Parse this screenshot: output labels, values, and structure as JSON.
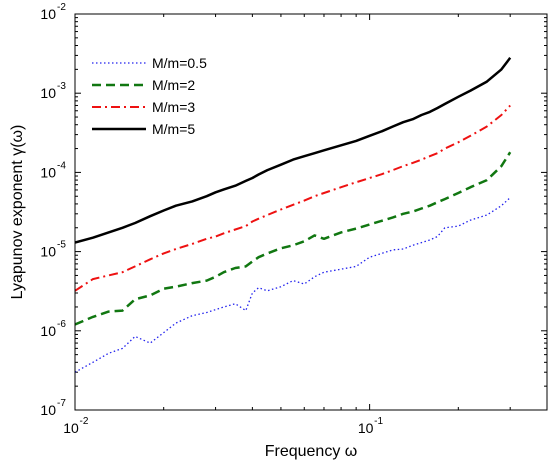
{
  "chart_data": {
    "type": "line",
    "xlabel": "Frequency  ω",
    "ylabel": "Lyapunov exponent γ(ω)",
    "xscale": "log",
    "yscale": "log",
    "xlim": [
      0.01,
      0.4
    ],
    "ylim": [
      1e-07,
      0.01
    ],
    "grid": false,
    "legend": "top-left",
    "x_ticks": [
      {
        "value": 0.01,
        "base": "10",
        "exp": "-2"
      },
      {
        "value": 0.1,
        "base": "10",
        "exp": "-1"
      }
    ],
    "y_ticks": [
      {
        "value": 1e-07,
        "base": "10",
        "exp": "-7"
      },
      {
        "value": 1e-06,
        "base": "10",
        "exp": "-6"
      },
      {
        "value": 1e-05,
        "base": "10",
        "exp": "-5"
      },
      {
        "value": 0.0001,
        "base": "10",
        "exp": "-4"
      },
      {
        "value": 0.001,
        "base": "10",
        "exp": "-3"
      },
      {
        "value": 0.01,
        "base": "10",
        "exp": "-2"
      }
    ],
    "x": [
      0.01,
      0.0115,
      0.013,
      0.0145,
      0.016,
      0.018,
      0.02,
      0.022,
      0.025,
      0.028,
      0.03,
      0.032,
      0.035,
      0.038,
      0.04,
      0.042,
      0.045,
      0.05,
      0.055,
      0.06,
      0.065,
      0.07,
      0.08,
      0.09,
      0.1,
      0.11,
      0.12,
      0.13,
      0.14,
      0.15,
      0.16,
      0.17,
      0.18,
      0.2,
      0.22,
      0.25,
      0.28,
      0.3
    ],
    "series": [
      {
        "name": "M/m=0.5",
        "color": "#2222ee",
        "dash": "dotted",
        "values": [
          3e-07,
          4e-07,
          5.2e-07,
          6e-07,
          8.5e-07,
          7e-07,
          9.5e-07,
          1.25e-06,
          1.55e-06,
          1.7e-06,
          1.85e-06,
          2e-06,
          2.2e-06,
          1.8e-06,
          3e-06,
          3.5e-06,
          3.2e-06,
          3.6e-06,
          4.3e-06,
          3.9e-06,
          4.8e-06,
          5.5e-06,
          6e-06,
          6.5e-06,
          8.5e-06,
          9.5e-06,
          1.05e-05,
          1.08e-05,
          1.2e-05,
          1.3e-05,
          1.4e-05,
          1.55e-05,
          2e-05,
          2.1e-05,
          2.5e-05,
          2.9e-05,
          3.8e-05,
          4.8e-05
        ]
      },
      {
        "name": "M/m=2",
        "color": "#117711",
        "dash": "dashed",
        "values": [
          1.2e-06,
          1.5e-06,
          1.75e-06,
          1.8e-06,
          2.5e-06,
          2.8e-06,
          3.4e-06,
          3.6e-06,
          4e-06,
          4.3e-06,
          4.8e-06,
          5.5e-06,
          6.2e-06,
          6.5e-06,
          7.5e-06,
          8.5e-06,
          9.5e-06,
          1.1e-05,
          1.2e-05,
          1.35e-05,
          1.6e-05,
          1.45e-05,
          1.75e-05,
          1.95e-05,
          2.2e-05,
          2.45e-05,
          2.7e-05,
          3e-05,
          3.2e-05,
          3.5e-05,
          3.8e-05,
          4.2e-05,
          4.6e-05,
          5.5e-05,
          6.5e-05,
          8e-05,
          0.00012,
          0.00018
        ]
      },
      {
        "name": "M/m=3",
        "color": "#ee1111",
        "dash": "dashdot",
        "values": [
          3.2e-06,
          4.5e-06,
          5e-06,
          5.5e-06,
          6.5e-06,
          8e-06,
          9.5e-06,
          1.08e-05,
          1.25e-05,
          1.45e-05,
          1.55e-05,
          1.7e-05,
          1.9e-05,
          2.1e-05,
          2.4e-05,
          2.6e-05,
          2.9e-05,
          3.4e-05,
          3.9e-05,
          4.4e-05,
          5e-05,
          5.5e-05,
          6.5e-05,
          7.5e-05,
          8.5e-05,
          9.5e-05,
          0.000107,
          0.00012,
          0.000132,
          0.000145,
          0.00016,
          0.000175,
          0.0002,
          0.00024,
          0.00029,
          0.00038,
          0.00053,
          0.0007
        ]
      },
      {
        "name": "M/m=5",
        "color": "#000000",
        "dash": "solid",
        "values": [
          1.3e-05,
          1.5e-05,
          1.75e-05,
          2e-05,
          2.3e-05,
          2.8e-05,
          3.3e-05,
          3.8e-05,
          4.3e-05,
          5e-05,
          5.6e-05,
          6.1e-05,
          6.8e-05,
          7.8e-05,
          8.5e-05,
          9.4e-05,
          0.000107,
          0.000125,
          0.000145,
          0.00016,
          0.000175,
          0.00019,
          0.00022,
          0.00025,
          0.00029,
          0.00033,
          0.00038,
          0.00043,
          0.00047,
          0.00053,
          0.00058,
          0.00065,
          0.00073,
          0.0009,
          0.00108,
          0.0014,
          0.002,
          0.0028
        ]
      }
    ]
  }
}
